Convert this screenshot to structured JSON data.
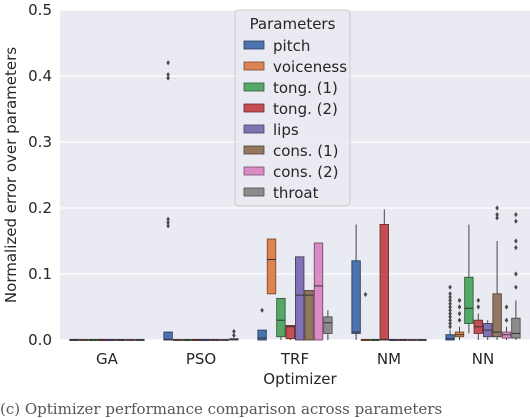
{
  "chart_data": {
    "type": "box",
    "title": "",
    "xlabel": "Optimizer",
    "ylabel": "Normalized error over parameters",
    "ylim": [
      0,
      0.5
    ],
    "yticks": [
      0.0,
      0.1,
      0.2,
      0.3,
      0.4,
      0.5
    ],
    "grid": true,
    "legend": {
      "title": "Parameters",
      "placement": "top-center"
    },
    "categories": [
      "GA",
      "PSO",
      "TRF",
      "NM",
      "NN"
    ],
    "series": [
      {
        "name": "pitch",
        "color": "#4c72b0",
        "boxes": [
          {
            "q1": 0,
            "median": 0,
            "q3": 0.001,
            "whislo": 0,
            "whishi": 0.001,
            "fliers": []
          },
          {
            "q1": 0,
            "median": 0.001,
            "q3": 0.012,
            "whislo": 0,
            "whishi": 0.012,
            "fliers": [
              0.173,
              0.178,
              0.183,
              0.397,
              0.402,
              0.42
            ]
          },
          {
            "q1": 0,
            "median": 0.003,
            "q3": 0.015,
            "whislo": 0,
            "whishi": 0.015,
            "fliers": [
              0.045
            ]
          },
          {
            "q1": 0.01,
            "median": 0.012,
            "q3": 0.12,
            "whislo": 0,
            "whishi": 0.175,
            "fliers": []
          },
          {
            "q1": 0,
            "median": 0.002,
            "q3": 0.008,
            "whislo": 0,
            "whishi": 0.015,
            "fliers": [
              0.02,
              0.025,
              0.03,
              0.035,
              0.04,
              0.045,
              0.05,
              0.055,
              0.06,
              0.065,
              0.07,
              0.08
            ]
          }
        ]
      },
      {
        "name": "voiceness",
        "color": "#dd8452",
        "boxes": [
          {
            "q1": 0,
            "median": 0,
            "q3": 0.001,
            "whislo": 0,
            "whishi": 0.001,
            "fliers": []
          },
          {
            "q1": 0,
            "median": 0,
            "q3": 0.001,
            "whislo": 0,
            "whishi": 0.001,
            "fliers": []
          },
          {
            "q1": 0.07,
            "median": 0.122,
            "q3": 0.153,
            "whislo": 0.07,
            "whishi": 0.153,
            "fliers": []
          },
          {
            "q1": 0,
            "median": 0,
            "q3": 0.001,
            "whislo": 0,
            "whishi": 0.001,
            "fliers": [
              0.069
            ]
          },
          {
            "q1": 0.005,
            "median": 0.008,
            "q3": 0.012,
            "whislo": 0,
            "whishi": 0.02,
            "fliers": [
              0.03,
              0.04,
              0.05,
              0.06
            ]
          }
        ]
      },
      {
        "name": "tong. (1)",
        "color": "#55a868",
        "boxes": [
          {
            "q1": 0,
            "median": 0,
            "q3": 0.001,
            "whislo": 0,
            "whishi": 0.001,
            "fliers": []
          },
          {
            "q1": 0,
            "median": 0,
            "q3": 0.001,
            "whislo": 0,
            "whishi": 0.001,
            "fliers": []
          },
          {
            "q1": 0.005,
            "median": 0.03,
            "q3": 0.063,
            "whislo": 0,
            "whishi": 0.063,
            "fliers": []
          },
          {
            "q1": 0,
            "median": 0,
            "q3": 0.001,
            "whislo": 0,
            "whishi": 0.001,
            "fliers": []
          },
          {
            "q1": 0.025,
            "median": 0.048,
            "q3": 0.095,
            "whislo": 0.01,
            "whishi": 0.175,
            "fliers": []
          }
        ]
      },
      {
        "name": "tong. (2)",
        "color": "#c44e52",
        "boxes": [
          {
            "q1": 0,
            "median": 0,
            "q3": 0.001,
            "whislo": 0,
            "whishi": 0.001,
            "fliers": []
          },
          {
            "q1": 0,
            "median": 0,
            "q3": 0.001,
            "whislo": 0,
            "whishi": 0.001,
            "fliers": []
          },
          {
            "q1": 0.002,
            "median": 0.02,
            "q3": 0.022,
            "whislo": 0,
            "whishi": 0.022,
            "fliers": []
          },
          {
            "q1": 0,
            "median": 0.001,
            "q3": 0.175,
            "whislo": 0,
            "whishi": 0.198,
            "fliers": []
          },
          {
            "q1": 0.01,
            "median": 0.02,
            "q3": 0.03,
            "whislo": 0,
            "whishi": 0.04,
            "fliers": [
              0.05,
              0.06
            ]
          }
        ]
      },
      {
        "name": "lips",
        "color": "#8172b3",
        "boxes": [
          {
            "q1": 0,
            "median": 0,
            "q3": 0.001,
            "whislo": 0,
            "whishi": 0.001,
            "fliers": []
          },
          {
            "q1": 0,
            "median": 0,
            "q3": 0.001,
            "whislo": 0,
            "whishi": 0.001,
            "fliers": []
          },
          {
            "q1": 0,
            "median": 0.068,
            "q3": 0.126,
            "whislo": 0,
            "whishi": 0.126,
            "fliers": []
          },
          {
            "q1": 0,
            "median": 0,
            "q3": 0.001,
            "whislo": 0,
            "whishi": 0.001,
            "fliers": []
          },
          {
            "q1": 0.005,
            "median": 0.015,
            "q3": 0.025,
            "whislo": 0,
            "whishi": 0.03,
            "fliers": []
          }
        ]
      },
      {
        "name": "cons. (1)",
        "color": "#937860",
        "boxes": [
          {
            "q1": 0,
            "median": 0,
            "q3": 0.001,
            "whislo": 0,
            "whishi": 0.001,
            "fliers": []
          },
          {
            "q1": 0,
            "median": 0,
            "q3": 0.001,
            "whislo": 0,
            "whishi": 0.001,
            "fliers": []
          },
          {
            "q1": 0,
            "median": 0.068,
            "q3": 0.075,
            "whislo": 0,
            "whishi": 0.075,
            "fliers": []
          },
          {
            "q1": 0,
            "median": 0,
            "q3": 0.001,
            "whislo": 0,
            "whishi": 0.001,
            "fliers": []
          },
          {
            "q1": 0.005,
            "median": 0.012,
            "q3": 0.07,
            "whislo": 0,
            "whishi": 0.15,
            "fliers": [
              0.185,
              0.19,
              0.2
            ]
          }
        ]
      },
      {
        "name": "cons. (2)",
        "color": "#da8bc3",
        "boxes": [
          {
            "q1": 0,
            "median": 0,
            "q3": 0.001,
            "whislo": 0,
            "whishi": 0.001,
            "fliers": []
          },
          {
            "q1": 0,
            "median": 0,
            "q3": 0.001,
            "whislo": 0,
            "whishi": 0.001,
            "fliers": []
          },
          {
            "q1": 0,
            "median": 0.082,
            "q3": 0.147,
            "whislo": 0,
            "whishi": 0.147,
            "fliers": []
          },
          {
            "q1": 0,
            "median": 0,
            "q3": 0.001,
            "whislo": 0,
            "whishi": 0.001,
            "fliers": []
          },
          {
            "q1": 0.003,
            "median": 0.008,
            "q3": 0.012,
            "whislo": 0,
            "whishi": 0.02,
            "fliers": [
              0.03,
              0.05
            ]
          }
        ]
      },
      {
        "name": "throat",
        "color": "#8c8c8c",
        "boxes": [
          {
            "q1": 0,
            "median": 0,
            "q3": 0.001,
            "whislo": 0,
            "whishi": 0.001,
            "fliers": []
          },
          {
            "q1": 0,
            "median": 0.001,
            "q3": 0.002,
            "whislo": 0,
            "whishi": 0.002,
            "fliers": [
              0.007,
              0.013
            ]
          },
          {
            "q1": 0.01,
            "median": 0.026,
            "q3": 0.035,
            "whislo": 0,
            "whishi": 0.045,
            "fliers": []
          },
          {
            "q1": 0,
            "median": 0,
            "q3": 0.001,
            "whislo": 0,
            "whishi": 0.001,
            "fliers": []
          },
          {
            "q1": 0.003,
            "median": 0.01,
            "q3": 0.033,
            "whislo": 0,
            "whishi": 0.06,
            "fliers": [
              0.08,
              0.1,
              0.14,
              0.15,
              0.18,
              0.19
            ]
          }
        ]
      }
    ]
  },
  "caption_bottom": "(c) Optimizer performance comparison across parameters"
}
